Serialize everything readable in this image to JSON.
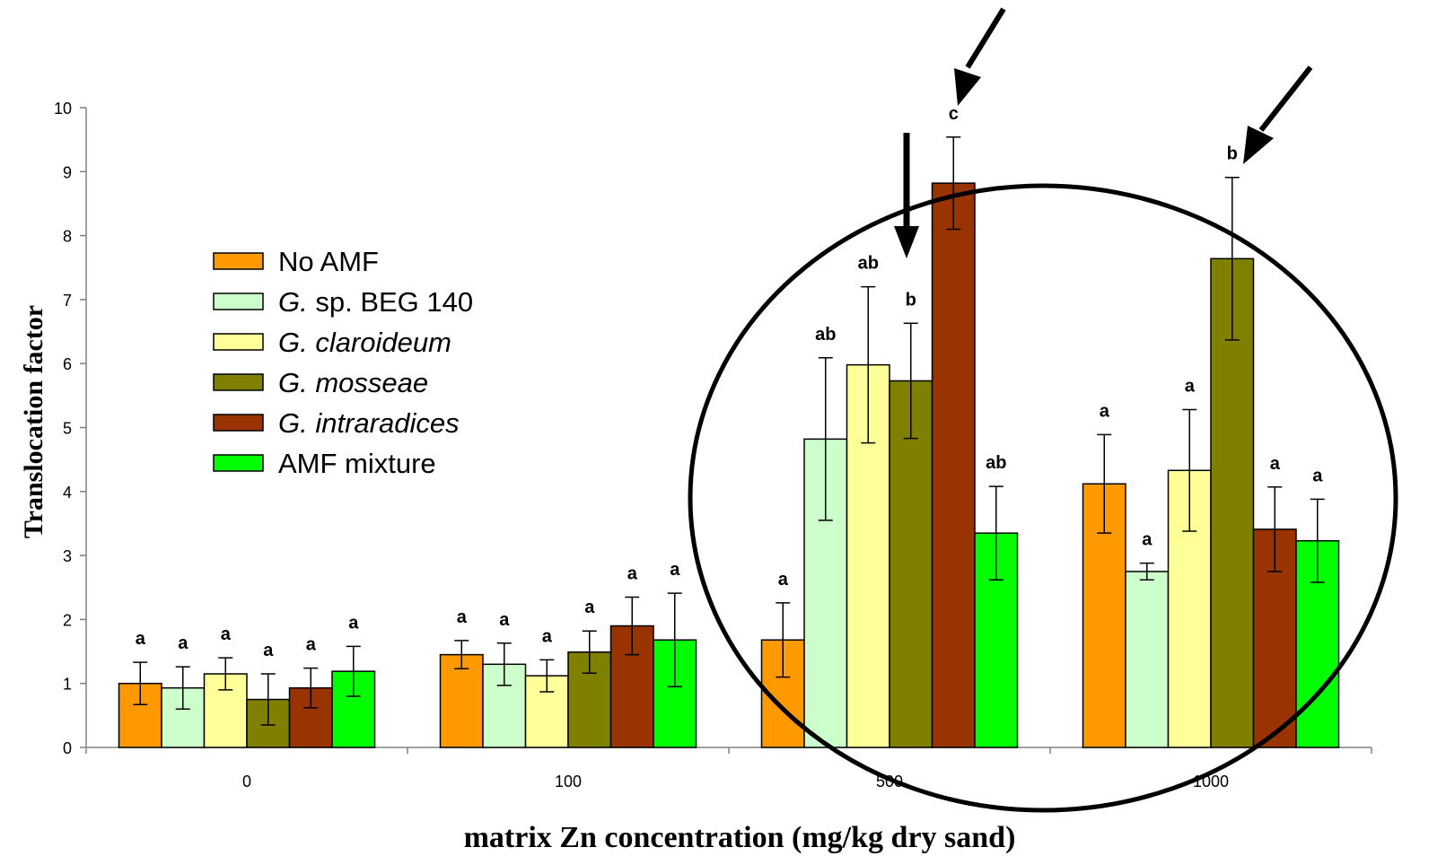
{
  "chart_data": {
    "type": "bar",
    "title": "",
    "xlabel": "matrix Zn concentration (mg/kg dry sand)",
    "ylabel": "Translocation factor",
    "ylim": [
      0,
      10
    ],
    "yticks": [
      "0",
      "1",
      "2",
      "3",
      "4",
      "5",
      "6",
      "7",
      "8",
      "9",
      "10"
    ],
    "categories": [
      "0",
      "100",
      "500",
      "1000"
    ],
    "grid": false,
    "legend_position": "left",
    "series": [
      {
        "name": "No AMF",
        "legend_parts": [
          {
            "text": "No AMF",
            "italic": false
          }
        ],
        "color": "#FF9900",
        "values": [
          1.0,
          1.45,
          1.68,
          4.12
        ],
        "errors": [
          0.33,
          0.22,
          0.58,
          0.77
        ],
        "letters": [
          "a",
          "a",
          "a",
          "a"
        ]
      },
      {
        "name": "G. sp. BEG 140",
        "legend_parts": [
          {
            "text": "G.",
            "italic": true
          },
          {
            "text": " sp. BEG 140",
            "italic": false
          }
        ],
        "color": "#CCFFCC",
        "values": [
          0.93,
          1.3,
          4.82,
          2.75
        ],
        "errors": [
          0.33,
          0.33,
          1.27,
          0.13
        ],
        "letters": [
          "a",
          "a",
          "ab",
          "a"
        ]
      },
      {
        "name": "G. claroideum",
        "legend_parts": [
          {
            "text": "G. claroideum",
            "italic": true
          }
        ],
        "color": "#FFFF99",
        "values": [
          1.15,
          1.12,
          5.98,
          4.33
        ],
        "errors": [
          0.25,
          0.25,
          1.22,
          0.95
        ],
        "letters": [
          "a",
          "a",
          "ab",
          "a"
        ]
      },
      {
        "name": "G. mosseae",
        "legend_parts": [
          {
            "text": "G. mosseae",
            "italic": true
          }
        ],
        "color": "#808000",
        "values": [
          0.75,
          1.49,
          5.73,
          7.64
        ],
        "errors": [
          0.4,
          0.33,
          0.9,
          1.27
        ],
        "letters": [
          "a",
          "a",
          "b",
          "b"
        ]
      },
      {
        "name": "G. intraradices",
        "legend_parts": [
          {
            "text": "G. intraradices",
            "italic": true
          }
        ],
        "color": "#993300",
        "values": [
          0.93,
          1.9,
          8.82,
          3.41
        ],
        "errors": [
          0.31,
          0.45,
          0.72,
          0.66
        ],
        "letters": [
          "a",
          "a",
          "c",
          "a"
        ]
      },
      {
        "name": "AMF mixture",
        "legend_parts": [
          {
            "text": "AMF mixture",
            "italic": false
          }
        ],
        "color": "#00FF00",
        "values": [
          1.19,
          1.68,
          3.35,
          3.23
        ],
        "errors": [
          0.39,
          0.73,
          0.73,
          0.65
        ],
        "letters": [
          "a",
          "a",
          "ab",
          "a"
        ]
      }
    ]
  }
}
